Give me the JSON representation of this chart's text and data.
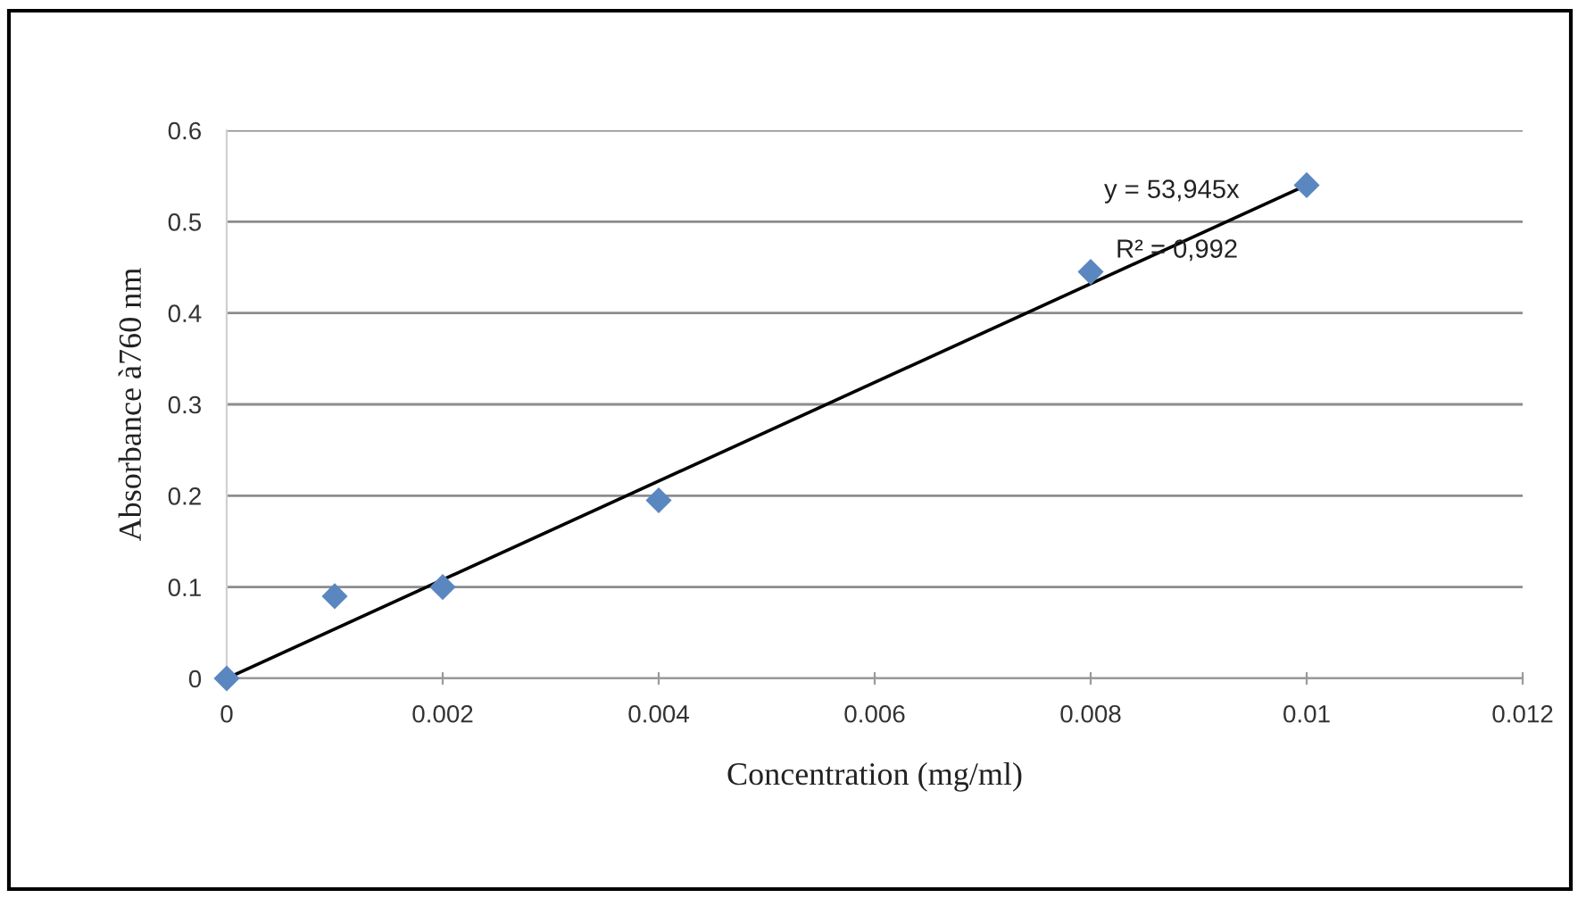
{
  "chart_data": {
    "type": "scatter",
    "xlabel": "Concentration (mg/ml)",
    "ylabel": "Absorbance à760 nm",
    "x": [
      0,
      0.001,
      0.002,
      0.004,
      0.008,
      0.01
    ],
    "series": [
      {
        "color": "#5b87c0",
        "marker": "diamond",
        "values": [
          0,
          0.09,
          0.1,
          0.195,
          0.445,
          0.54
        ]
      },
      {
        "type": "line",
        "color": "#000000",
        "marker": "none",
        "line_style": "solid",
        "x": [
          0,
          0.01
        ],
        "values": [
          0,
          0.54
        ]
      }
    ],
    "xlim": [
      0,
      0.012
    ],
    "xticks": [
      0,
      0.002,
      0.004,
      0.006,
      0.008,
      0.01,
      0.012
    ],
    "ylim": [
      0,
      0.6
    ],
    "yticks": [
      0,
      0.1,
      0.2,
      0.3,
      0.4,
      0.5,
      0.6
    ],
    "grid": "y",
    "annotations": [
      "y = 53,945x",
      "R² = 0,992"
    ]
  }
}
